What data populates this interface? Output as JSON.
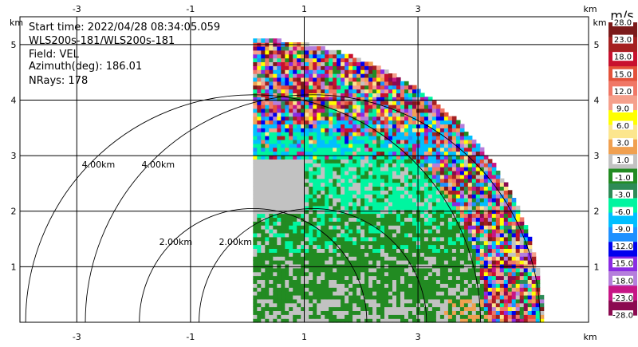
{
  "chart_data": {
    "type": "heatmap",
    "info_lines": [
      "Start time: 2022/04/28 08:34:05.059",
      "WLS200s-181/WLS200s-181",
      "Field: VEL",
      "Azimuth(deg): 186.01",
      "NRays: 178"
    ],
    "field": "VEL",
    "units": "km",
    "x_range": [
      -4,
      6
    ],
    "y_range": [
      0,
      5.5
    ],
    "x_ticks": [
      "-3",
      "-1",
      "1",
      "3"
    ],
    "x_tick_values": [
      -3,
      -1,
      1,
      3
    ],
    "y_ticks": [
      "1",
      "2",
      "3",
      "4",
      "5"
    ],
    "y_tick_values": [
      1,
      2,
      3,
      4,
      5
    ],
    "grid": true,
    "radar_origin_km": [
      0.1,
      0
    ],
    "range_rings": [
      {
        "label": "2.00km",
        "radius_km": 2,
        "center_km": [
          0.1,
          0
        ]
      },
      {
        "label": "4.00km",
        "radius_km": 4,
        "center_km": [
          0.1,
          0
        ]
      },
      {
        "label": "2.00km",
        "radius_km": 2,
        "center_km": [
          1.15,
          0
        ]
      },
      {
        "label": "4.00km",
        "radius_km": 4,
        "center_km": [
          1.15,
          0
        ]
      }
    ],
    "sector": {
      "azimuth_start_deg": 0,
      "azimuth_end_deg": 90,
      "max_range_km": 5.1
    },
    "colorbar": {
      "title": "m/s",
      "labels": [
        "28.0",
        "23.0",
        "18.0",
        "15.0",
        "12.0",
        "9.0",
        "6.0",
        "3.0",
        "1.0",
        "-1.0",
        "-3.0",
        "-6.0",
        "-9.0",
        "-12.0",
        "-15.0",
        "-18.0",
        "-23.0",
        "-28.0"
      ],
      "colors": [
        "#7b1b1b",
        "#a52020",
        "#c8102e",
        "#e3523a",
        "#f07766",
        "#f5a08c",
        "#ffff00",
        "#fce68e",
        "#f0a050",
        "#c2c2c2",
        "#228b22",
        "#2e8b57",
        "#00f5a0",
        "#00bfff",
        "#1e90ff",
        "#0000ee",
        "#8a2be2",
        "#b57edc",
        "#c71585",
        "#8b0a50"
      ]
    }
  }
}
